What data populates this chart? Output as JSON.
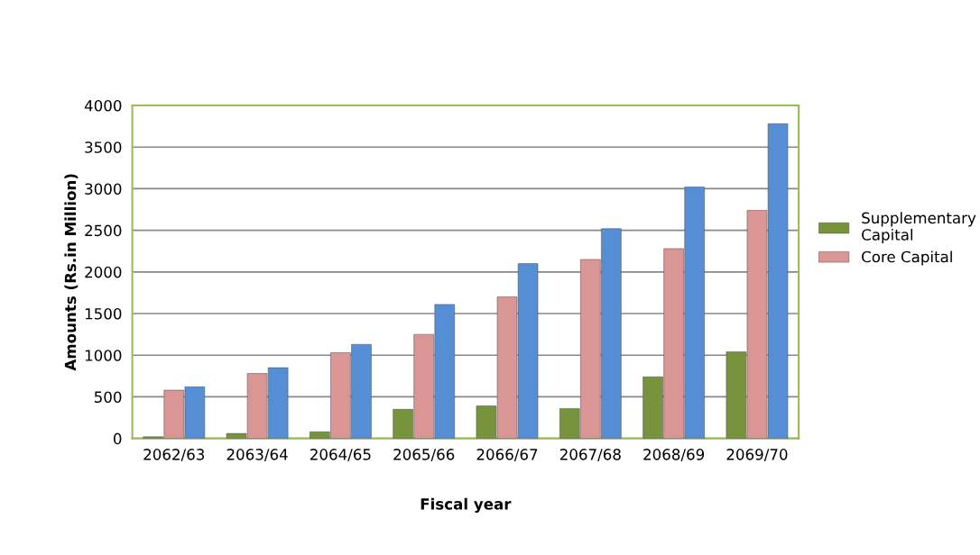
{
  "chart_data": {
    "type": "bar",
    "xlabel": "Fiscal year",
    "ylabel": "Amounts (Rs.in Million)",
    "categories": [
      "2062/63",
      "2063/64",
      "2064/65",
      "2065/66",
      "2066/67",
      "2067/68",
      "2068/69",
      "2069/70"
    ],
    "series": [
      {
        "name": "Supplementary Capital",
        "color": "#77933c",
        "values": [
          20,
          60,
          80,
          350,
          390,
          360,
          740,
          1040
        ]
      },
      {
        "name": "Core Capital",
        "color": "#d99694",
        "values": [
          580,
          780,
          1030,
          1250,
          1700,
          2150,
          2280,
          2740
        ]
      },
      {
        "color": "#558ed5",
        "values": [
          620,
          850,
          1130,
          1610,
          2100,
          2520,
          3020,
          3780
        ]
      }
    ],
    "ylim": [
      0,
      4000
    ],
    "yticks": [
      0,
      500,
      1000,
      1500,
      2000,
      2500,
      3000,
      3500,
      4000
    ],
    "grid": "y",
    "legend": "right"
  }
}
